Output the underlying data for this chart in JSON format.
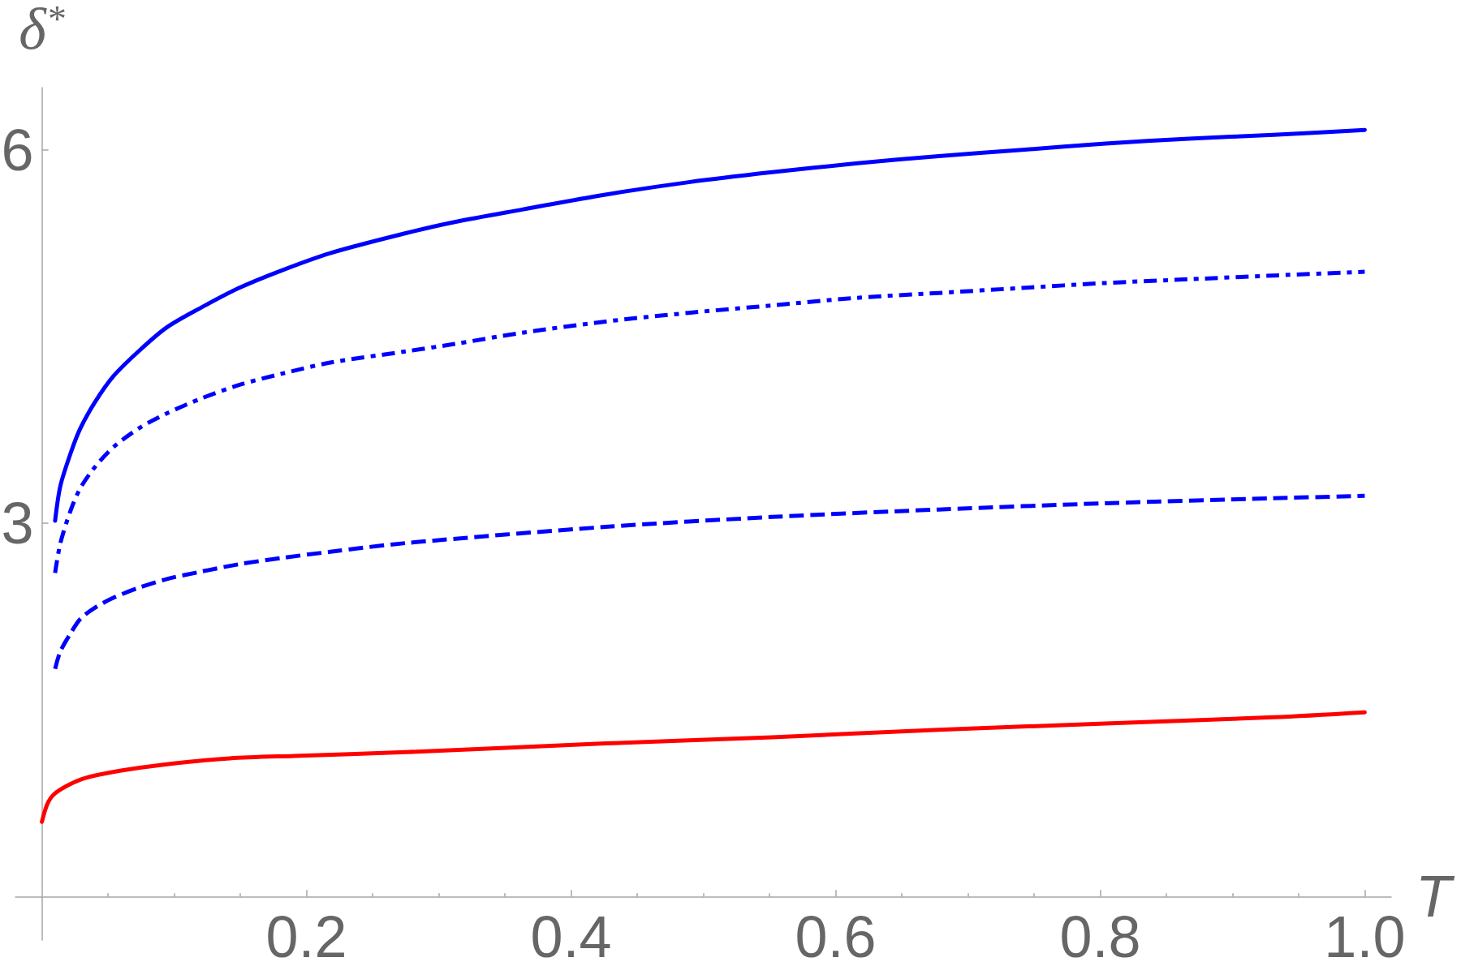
{
  "chart_data": {
    "type": "line",
    "ylabel": "δ$^{*}$",
    "xlabel": "T",
    "xlim": [
      -0.02,
      1.02
    ],
    "xticks": [
      {
        "value": 0.05,
        "label": null
      },
      {
        "value": 0.1,
        "label": null
      },
      {
        "value": 0.15,
        "label": null
      },
      0.2,
      {
        "value": 0.25,
        "label": null
      },
      {
        "value": 0.3,
        "label": null
      },
      {
        "value": 0.35,
        "label": null
      },
      0.4,
      {
        "value": 0.45,
        "label": null
      },
      {
        "value": 0.5,
        "label": null
      },
      {
        "value": 0.55,
        "label": null
      },
      0.6,
      {
        "value": 0.65,
        "label": null
      },
      {
        "value": 0.7,
        "label": null
      },
      {
        "value": 0.75,
        "label": null
      },
      0.8,
      {
        "value": 0.85,
        "label": null
      },
      {
        "value": 0.9,
        "label": null
      },
      {
        "value": 0.95,
        "label": null
      },
      {
        "value": 1,
        "label": "1.0"
      }
    ],
    "ylim": [
      -0.35,
      6.5
    ],
    "yticks": [
      3,
      6
    ],
    "grid": false,
    "marker": "none",
    "series": [
      {
        "color": "#0000ff",
        "line_style": "solid",
        "x": [
          0.01,
          0.014,
          0.022,
          0.029,
          0.04,
          0.054,
          0.073,
          0.094,
          0.12,
          0.149,
          0.181,
          0.218,
          0.275,
          0.312,
          0.363,
          0.426,
          0.489,
          0.552,
          0.615,
          0.678,
          0.741,
          0.804,
          0.867,
          0.931,
          1.0
        ],
        "values": [
          3.02,
          3.3,
          3.57,
          3.76,
          3.97,
          4.18,
          4.38,
          4.57,
          4.73,
          4.89,
          5.03,
          5.17,
          5.33,
          5.42,
          5.52,
          5.64,
          5.74,
          5.82,
          5.89,
          5.95,
          6.0,
          6.05,
          6.09,
          6.12,
          6.16
        ]
      },
      {
        "color": "#0000ff",
        "line_style": "dashdot",
        "x": [
          0.01,
          0.014,
          0.022,
          0.029,
          0.04,
          0.054,
          0.073,
          0.094,
          0.12,
          0.149,
          0.181,
          0.218,
          0.275,
          0.312,
          0.363,
          0.426,
          0.489,
          0.552,
          0.615,
          0.678,
          0.741,
          0.804,
          0.867,
          0.931,
          1.0
        ],
        "values": [
          2.6,
          2.84,
          3.11,
          3.28,
          3.45,
          3.61,
          3.76,
          3.88,
          4.0,
          4.11,
          4.2,
          4.29,
          4.38,
          4.44,
          4.53,
          4.62,
          4.69,
          4.75,
          4.81,
          4.85,
          4.89,
          4.93,
          4.96,
          4.99,
          5.02
        ]
      },
      {
        "color": "#0000ff",
        "line_style": "dashed",
        "x": [
          0.01,
          0.014,
          0.022,
          0.029,
          0.04,
          0.054,
          0.073,
          0.094,
          0.12,
          0.149,
          0.181,
          0.218,
          0.275,
          0.426,
          0.552,
          0.678,
          0.804,
          0.931,
          1.0
        ],
        "values": [
          1.83,
          1.97,
          2.12,
          2.23,
          2.32,
          2.4,
          2.48,
          2.55,
          2.61,
          2.67,
          2.72,
          2.77,
          2.84,
          2.97,
          3.05,
          3.11,
          3.16,
          3.2,
          3.22
        ]
      },
      {
        "color": "#ff0000",
        "line_style": "solid",
        "x": [
          0,
          0.004,
          0.009,
          0.019,
          0.032,
          0.059,
          0.092,
          0.142,
          0.191,
          0.275,
          0.426,
          0.552,
          0.678,
          0.804,
          0.931,
          1.0
        ],
        "values": [
          0.6,
          0.74,
          0.82,
          0.89,
          0.95,
          1.01,
          1.06,
          1.11,
          1.13,
          1.16,
          1.23,
          1.28,
          1.34,
          1.39,
          1.44,
          1.48
        ]
      }
    ]
  }
}
